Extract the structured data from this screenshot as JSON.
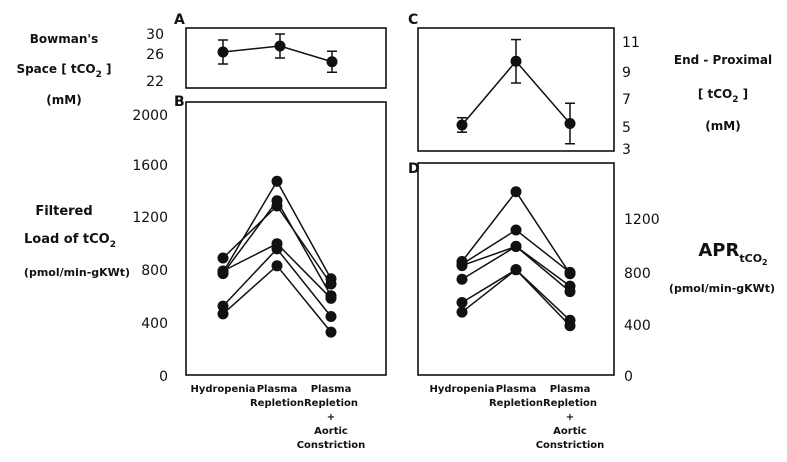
{
  "chart_data": [
    {
      "panel": "A",
      "type": "line",
      "ylabel": [
        "Bowman's",
        "Space [ tCO",
        "2",
        " ]",
        "(mM)"
      ],
      "yticks": [
        "30",
        "26",
        "22"
      ],
      "ylim": [
        22,
        30
      ],
      "categories": [
        "Hydropenia",
        "Plasma Repletion",
        "Plasma Repletion + Aortic Constriction"
      ],
      "series": [
        {
          "values": [
            26.8,
            27.6,
            25.5
          ],
          "errors": [
            1.6,
            1.6,
            1.4
          ]
        }
      ]
    },
    {
      "panel": "B",
      "type": "line",
      "ylabel": [
        "Filtered",
        "Load of tCO",
        "2",
        "(pmol/min-gKWt)"
      ],
      "yticks": [
        "2000",
        "1600",
        "1200",
        "800",
        "400",
        "0"
      ],
      "ylim": [
        0,
        2000
      ],
      "categories": [
        "Hydropenia",
        "Plasma Repletion",
        "Plasma Repletion + Aortic Constriction"
      ],
      "category_labels": [
        [
          "Hydropenia"
        ],
        [
          "Plasma",
          "Repletion"
        ],
        [
          "Plasma",
          "Repletion",
          "+",
          "Aortic",
          "Constriction"
        ]
      ],
      "series": [
        {
          "values": [
            790,
            1490,
            740
          ]
        },
        {
          "values": [
            900,
            1300,
            700
          ]
        },
        {
          "values": [
            780,
            1340,
            610
          ]
        },
        {
          "values": [
            800,
            1010,
            590
          ]
        },
        {
          "values": [
            530,
            970,
            450
          ]
        },
        {
          "values": [
            470,
            840,
            330
          ]
        }
      ]
    },
    {
      "panel": "C",
      "type": "line",
      "ylabel": [
        "End - Proximal",
        "[ tCO",
        "2",
        " ]",
        "(mM)"
      ],
      "yticks": [
        "11",
        "9",
        "7",
        "5",
        "3"
      ],
      "ylim": [
        3,
        11.5
      ],
      "categories": [
        "Hydropenia",
        "Plasma Repletion",
        "Plasma Repletion + Aortic Constriction"
      ],
      "series": [
        {
          "values": [
            4.8,
            9.2,
            4.9
          ],
          "errors": [
            0.5,
            1.5,
            1.4
          ]
        }
      ]
    },
    {
      "panel": "D",
      "type": "line",
      "ylabel": [
        "APR",
        "tCO",
        "2",
        "(pmol/min-gKWt)"
      ],
      "yticks": [
        "1200",
        "800",
        "400",
        "0"
      ],
      "ylim": [
        0,
        1550
      ],
      "categories": [
        "Hydropenia",
        "Plasma Repletion",
        "Plasma Repletion + Aortic Constriction"
      ],
      "category_labels": [
        [
          "Hydropenia"
        ],
        [
          "Plasma",
          "Repletion"
        ],
        [
          "Plasma",
          "Repletion",
          "+",
          "Aortic",
          "Constriction"
        ]
      ],
      "series": [
        {
          "values": [
            830,
            1340,
            740
          ]
        },
        {
          "values": [
            810,
            1060,
            750
          ]
        },
        {
          "values": [
            700,
            940,
            650
          ]
        },
        {
          "values": [
            800,
            940,
            610
          ]
        },
        {
          "values": [
            530,
            770,
            400
          ]
        },
        {
          "values": [
            460,
            770,
            360
          ]
        }
      ]
    }
  ]
}
